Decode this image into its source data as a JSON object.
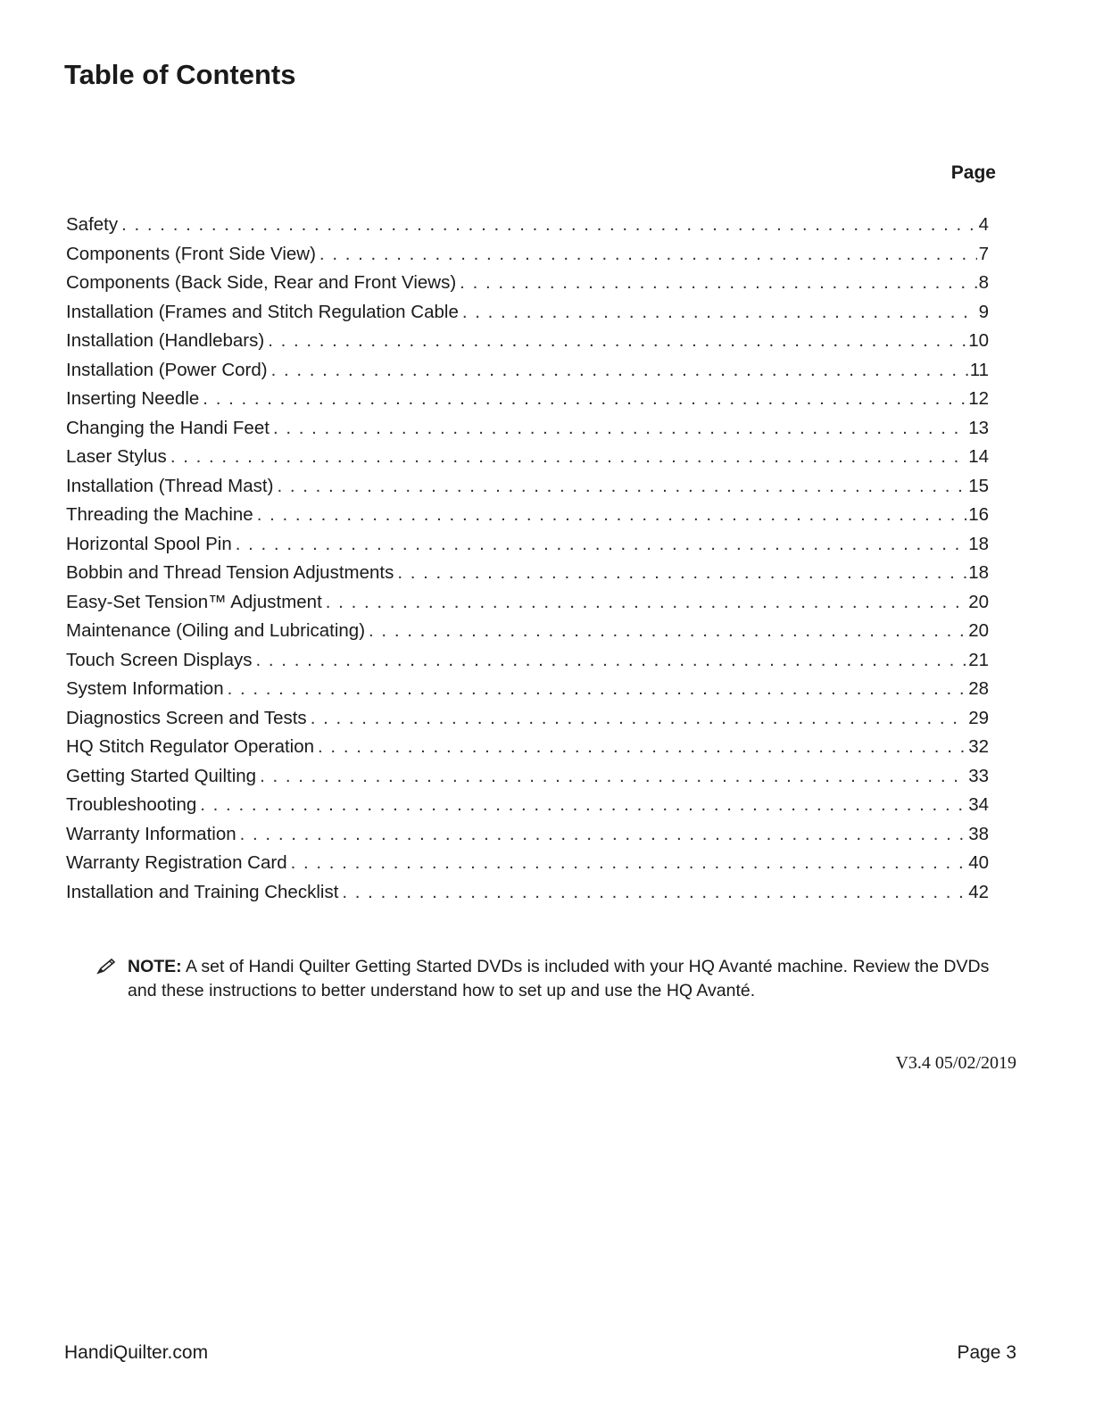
{
  "title": "Table of Contents",
  "page_header": "Page",
  "entries": [
    {
      "label": "Safety",
      "page": "4"
    },
    {
      "label": "Components (Front Side View)",
      "page": "7"
    },
    {
      "label": "Components (Back Side, Rear and Front Views)",
      "page": "8"
    },
    {
      "label": "Installation (Frames and Stitch Regulation Cable",
      "page": "9"
    },
    {
      "label": "Installation (Handlebars)",
      "page": "10"
    },
    {
      "label": "Installation (Power Cord)",
      "page": "11"
    },
    {
      "label": "Inserting Needle",
      "page": "12"
    },
    {
      "label": "Changing the Handi Feet",
      "page": "13"
    },
    {
      "label": "Laser Stylus",
      "page": "14"
    },
    {
      "label": "Installation (Thread Mast)",
      "page": "15"
    },
    {
      "label": "Threading the Machine",
      "page": "16"
    },
    {
      "label": "Horizontal Spool Pin",
      "page": "18"
    },
    {
      "label": "Bobbin and Thread Tension Adjustments",
      "page": "18"
    },
    {
      "label": "Easy-Set Tension™ Adjustment",
      "page": "20"
    },
    {
      "label": "Maintenance (Oiling and Lubricating)",
      "page": "20"
    },
    {
      "label": "Touch Screen Displays",
      "page": "21"
    },
    {
      "label": "System Information",
      "page": "28"
    },
    {
      "label": "Diagnostics Screen and Tests",
      "page": "29"
    },
    {
      "label": "HQ Stitch Regulator Operation",
      "page": "32"
    },
    {
      "label": "Getting Started Quilting",
      "page": "33"
    },
    {
      "label": "Troubleshooting",
      "page": "34"
    },
    {
      "label": "Warranty Information",
      "page": "38"
    },
    {
      "label": "Warranty Registration Card",
      "page": "40"
    },
    {
      "label": "Installation and Training Checklist",
      "page": "42"
    }
  ],
  "note": {
    "icon": "pencil-icon",
    "label": "NOTE:",
    "text": " A set of Handi Quilter Getting Started DVDs is included with your HQ Avanté machine.  Review the DVDs and these instructions to better understand how to set up and use the HQ Avanté."
  },
  "version": "V3.4  05/02/2019",
  "footer": {
    "site": "HandiQuilter.com",
    "page": "Page 3"
  }
}
